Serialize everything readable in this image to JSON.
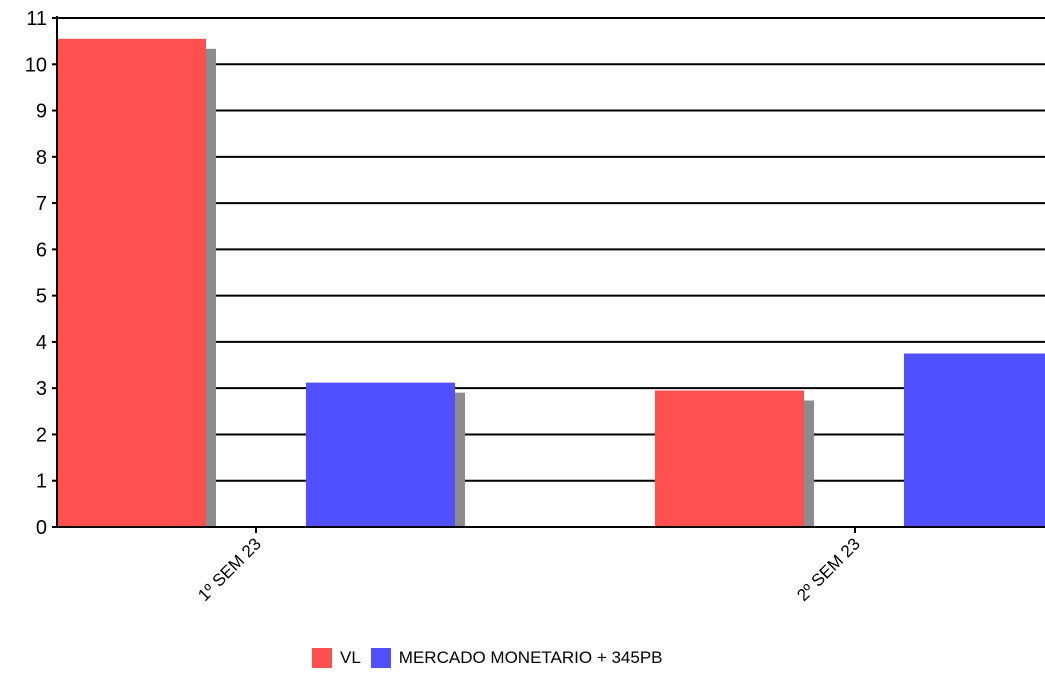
{
  "chart_data": {
    "type": "bar",
    "categories": [
      "1º SEM 23",
      "2º SEM 23"
    ],
    "series": [
      {
        "name": "VL",
        "values": [
          10.55,
          2.95
        ],
        "color": "#FF5050"
      },
      {
        "name": "MERCADO MONETARIO + 345PB",
        "values": [
          3.12,
          3.75
        ],
        "color": "#5050FF"
      }
    ],
    "ylim": [
      0,
      11
    ],
    "yticks": [
      0,
      1,
      2,
      3,
      4,
      5,
      6,
      7,
      8,
      9,
      10,
      11
    ],
    "grid": true,
    "shadow_color": "#8C8C8C",
    "legend_position": "bottom",
    "title": "",
    "xlabel": "",
    "ylabel": ""
  }
}
